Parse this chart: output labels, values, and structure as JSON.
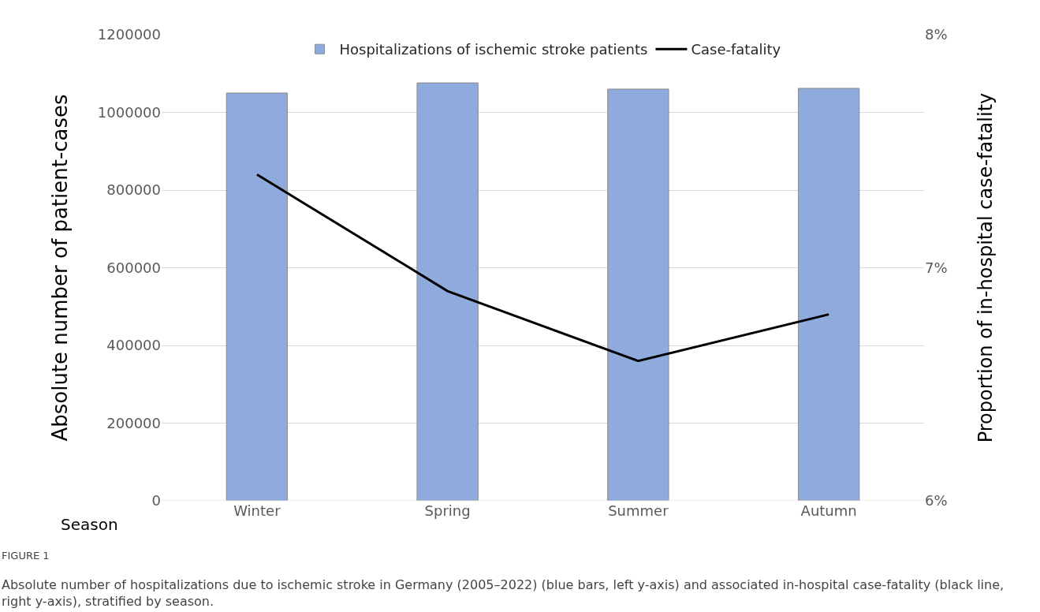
{
  "chart_data": {
    "type": "bar",
    "xlabel": "Season",
    "ylabel": "Absolute number of patient-cases",
    "y2label": "Proportion of in-hospital case-fatality",
    "categories": [
      "Winter",
      "Spring",
      "Summer",
      "Autumn"
    ],
    "series": [
      {
        "name": "Hospitalizations of ischemic stroke patients",
        "color": "#8faadc",
        "values": [
          1050000,
          1076000,
          1060000,
          1062000
        ]
      },
      {
        "name": "Case-fatality",
        "type": "line",
        "axis": "y2",
        "color": "#000000",
        "values": [
          7.4,
          6.9,
          6.6,
          6.8
        ]
      }
    ],
    "ylim": [
      0,
      1200000
    ],
    "yticks": [
      0,
      200000,
      400000,
      600000,
      800000,
      1000000,
      1200000
    ],
    "y2lim": [
      6,
      8
    ],
    "y2ticks": [
      {
        "value": 6,
        "label": "6%"
      },
      {
        "value": 7,
        "label": "7%"
      },
      {
        "value": 8,
        "label": "8%"
      }
    ],
    "grid": "y",
    "legend": "top",
    "annotations": [
      "FIGURE 1",
      "Absolute number of hospitalizations due to ischemic stroke in Germany (2005–2022) (blue bars, left y-axis) and associated in-hospital case-fatality (black line, right y-axis), stratified by season."
    ]
  }
}
